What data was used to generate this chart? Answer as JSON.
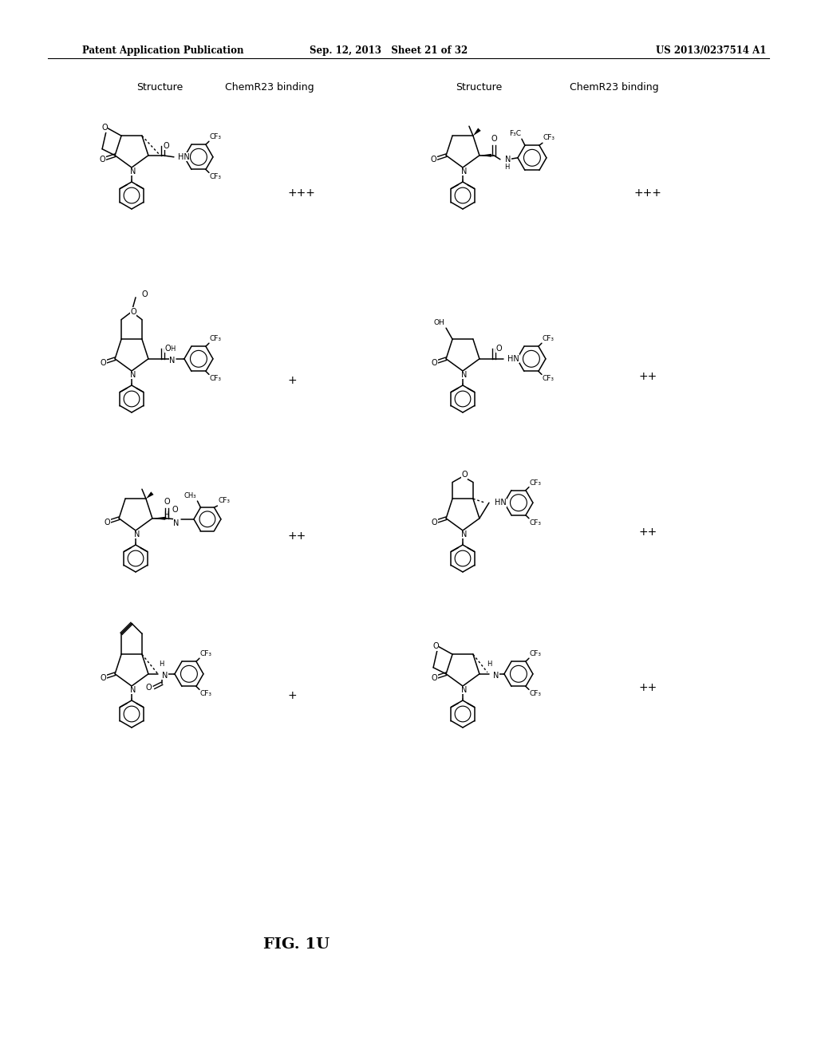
{
  "header_left": "Patent Application Publication",
  "header_center": "Sep. 12, 2013   Sheet 21 of 32",
  "header_right": "US 2013/0237514 A1",
  "col1_struct": "Structure",
  "col1_binding": "ChemR23 binding",
  "col2_struct": "Structure",
  "col2_binding": "ChemR23 binding",
  "fig_label": "FIG. 1U",
  "bindings": [
    "+++",
    "+",
    "++",
    "++",
    "+++",
    "++",
    "+",
    "++"
  ],
  "bg_color": "#ffffff"
}
